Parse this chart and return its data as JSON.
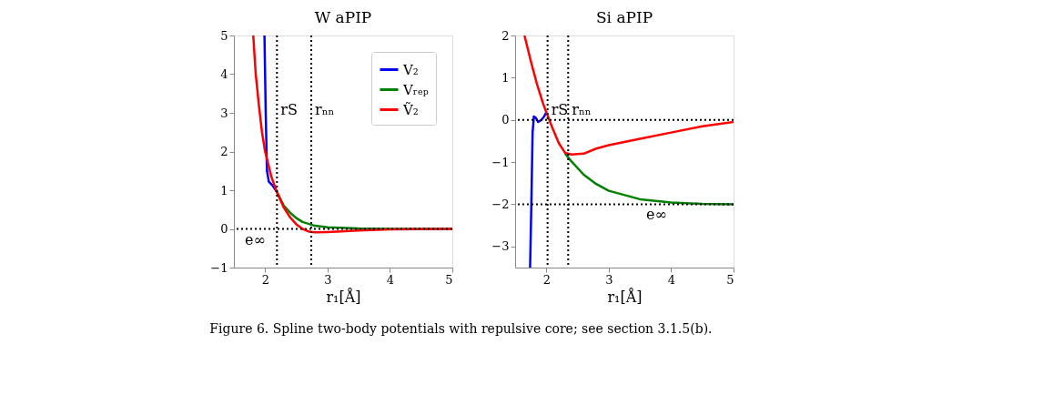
{
  "chart_data": [
    {
      "type": "line",
      "title": "W aPIP",
      "xlabel": "r₁[Å]",
      "xlim": [
        1.5,
        5
      ],
      "ylim": [
        -1,
        5
      ],
      "xticks": [
        2,
        3,
        4,
        5
      ],
      "yticks": [
        -1,
        0,
        1,
        2,
        3,
        4,
        5
      ],
      "grid": false,
      "legend": "top right",
      "line_style": "solid",
      "marker": "none",
      "annotations": [
        "Figure 6. Spline two-body potentials with repulsive core; see section 3.1.5(b)."
      ],
      "ref_lines": [
        {
          "axis": "x",
          "value": 2.19,
          "label": "rS",
          "line_style": "dotted",
          "color": "#000000"
        },
        {
          "axis": "x",
          "value": 2.74,
          "label": "rₙₙ",
          "line_style": "dotted",
          "color": "#000000"
        },
        {
          "axis": "y",
          "value": 0,
          "label": "e∞",
          "line_style": "dotted",
          "color": "#000000"
        }
      ],
      "series": [
        {
          "name": "V₂",
          "color": "#0000ff",
          "x": [
            1.99,
            2.01,
            2.03,
            2.06,
            2.12,
            2.19
          ],
          "values": [
            5,
            3,
            1.5,
            1.22,
            1.12,
            0.95
          ]
        },
        {
          "name": "Vᵣₑₚ",
          "color": "#008000",
          "x": [
            2.19,
            2.3,
            2.4,
            2.5,
            2.6,
            2.8,
            3.0,
            3.5,
            4.0,
            5.0
          ],
          "values": [
            0.95,
            0.6,
            0.42,
            0.28,
            0.18,
            0.08,
            0.04,
            0.01,
            0,
            0
          ]
        },
        {
          "name": "Ṽ₂",
          "color": "#ff0000",
          "x": [
            1.81,
            1.85,
            1.9,
            1.95,
            2.0,
            2.1,
            2.19,
            2.3,
            2.4,
            2.5,
            2.6,
            2.7,
            2.8,
            3.0,
            3.5,
            4.0,
            5.0
          ],
          "values": [
            5,
            4.0,
            3.2,
            2.5,
            2.0,
            1.35,
            0.95,
            0.55,
            0.3,
            0.12,
            0.0,
            -0.07,
            -0.09,
            -0.08,
            -0.04,
            -0.01,
            0
          ]
        }
      ]
    },
    {
      "type": "line",
      "title": "Si aPIP",
      "xlabel": "r₁[Å]",
      "xlim": [
        1.5,
        5
      ],
      "ylim": [
        -3.5,
        2
      ],
      "xticks": [
        2,
        3,
        4,
        5
      ],
      "yticks": [
        -3,
        -2,
        -1,
        0,
        1,
        2
      ],
      "grid": false,
      "line_style": "solid",
      "marker": "none",
      "ref_lines": [
        {
          "axis": "x",
          "value": 2.02,
          "label": "rS",
          "line_style": "dotted",
          "color": "#000000"
        },
        {
          "axis": "x",
          "value": 2.35,
          "label": "rₙₙ",
          "line_style": "dotted",
          "color": "#000000"
        },
        {
          "axis": "y",
          "value": 0,
          "line_style": "dotted",
          "color": "#000000"
        },
        {
          "axis": "y",
          "value": -2,
          "label": "e∞",
          "line_style": "dotted",
          "color": "#000000"
        }
      ],
      "series": [
        {
          "color": "#0000ff",
          "x": [
            1.74,
            1.76,
            1.78,
            1.8,
            1.83,
            1.87,
            1.92,
            1.96,
            2.0
          ],
          "values": [
            -3.5,
            -2,
            -0.3,
            0.08,
            0.05,
            -0.05,
            0.0,
            0.07,
            0.18
          ]
        },
        {
          "color": "#008000",
          "x": [
            2.3,
            2.4,
            2.6,
            2.8,
            3.0,
            3.5,
            4.0,
            4.5,
            5.0
          ],
          "values": [
            -0.8,
            -0.98,
            -1.3,
            -1.52,
            -1.68,
            -1.88,
            -1.96,
            -1.99,
            -2.0
          ]
        },
        {
          "color": "#ff0000",
          "x": [
            1.65,
            1.75,
            1.85,
            1.95,
            2.0,
            2.1,
            2.2,
            2.3,
            2.4,
            2.6,
            2.8,
            3.0,
            3.5,
            4.0,
            4.5,
            5.0
          ],
          "values": [
            2,
            1.4,
            0.85,
            0.38,
            0.18,
            -0.2,
            -0.55,
            -0.78,
            -0.82,
            -0.8,
            -0.68,
            -0.6,
            -0.45,
            -0.3,
            -0.15,
            -0.05
          ]
        }
      ]
    }
  ]
}
